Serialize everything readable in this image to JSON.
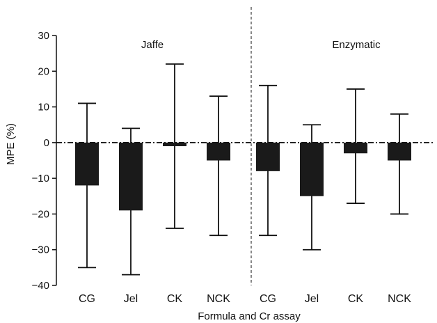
{
  "chart_data": {
    "type": "bar",
    "ylabel": "MPE (%)",
    "xlabel": "Formula and Cr assay",
    "ylim": [
      -40,
      30
    ],
    "yticks": [
      30,
      20,
      10,
      0,
      -10,
      -20,
      -30,
      -40
    ],
    "ytick_labels": [
      "30",
      "20",
      "10",
      "0",
      "−10",
      "−20",
      "−30",
      "−40"
    ],
    "groups": [
      {
        "label": "Jaffe",
        "categories": [
          "CG",
          "Jel",
          "CK",
          "NCK"
        ],
        "values": [
          -12,
          -19,
          -1,
          -5
        ],
        "upper": [
          11,
          4,
          22,
          13
        ],
        "lower": [
          -35,
          -37,
          -24,
          -26
        ]
      },
      {
        "label": "Enzymatic",
        "categories": [
          "CG",
          "Jel",
          "CK",
          "NCK"
        ],
        "values": [
          -8,
          -15,
          -3,
          -5
        ],
        "upper": [
          16,
          5,
          15,
          8
        ],
        "lower": [
          -26,
          -30,
          -17,
          -20
        ]
      }
    ],
    "reference_line": 0,
    "grid": false,
    "bar_color": "#1a1a1a"
  }
}
